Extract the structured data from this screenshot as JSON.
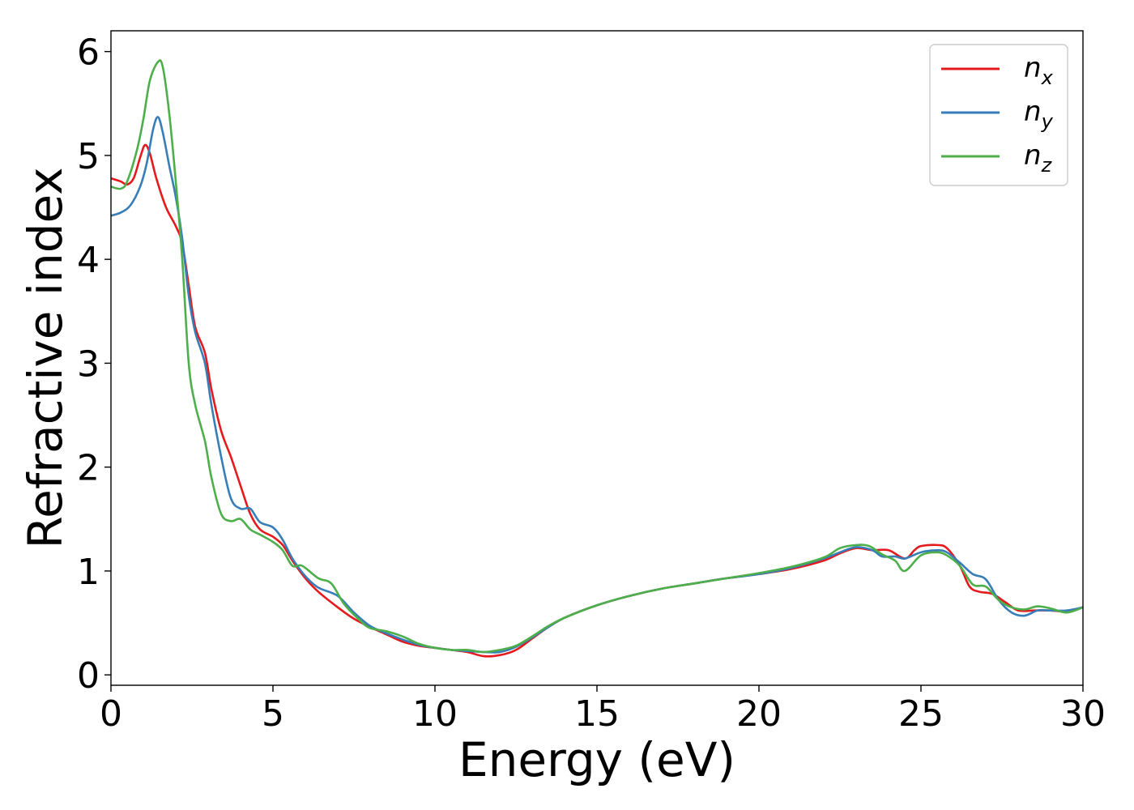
{
  "chart_data": {
    "type": "line",
    "title": "",
    "xlabel": "Energy (eV)",
    "ylabel": "Refractive index",
    "xlim": [
      0,
      30
    ],
    "ylim": [
      -0.1,
      6.2
    ],
    "xticks": [
      0,
      5,
      10,
      15,
      20,
      25,
      30
    ],
    "yticks": [
      0,
      1,
      2,
      3,
      4,
      5,
      6
    ],
    "grid": false,
    "legend_position": "top-right",
    "series": [
      {
        "name": "n",
        "subscript": "x",
        "color": "#e41a1c",
        "points": [
          [
            0,
            4.78
          ],
          [
            0.3,
            4.75
          ],
          [
            0.5,
            4.72
          ],
          [
            0.7,
            4.78
          ],
          [
            0.9,
            4.98
          ],
          [
            1.05,
            5.1
          ],
          [
            1.2,
            5.02
          ],
          [
            1.4,
            4.78
          ],
          [
            1.7,
            4.5
          ],
          [
            2.0,
            4.32
          ],
          [
            2.2,
            4.15
          ],
          [
            2.4,
            3.75
          ],
          [
            2.6,
            3.35
          ],
          [
            2.9,
            3.1
          ],
          [
            3.1,
            2.75
          ],
          [
            3.4,
            2.35
          ],
          [
            3.7,
            2.1
          ],
          [
            4.0,
            1.82
          ],
          [
            4.3,
            1.55
          ],
          [
            4.6,
            1.4
          ],
          [
            5.0,
            1.33
          ],
          [
            5.3,
            1.25
          ],
          [
            5.6,
            1.1
          ],
          [
            6.0,
            0.93
          ],
          [
            6.4,
            0.8
          ],
          [
            7.0,
            0.65
          ],
          [
            7.5,
            0.54
          ],
          [
            8.0,
            0.46
          ],
          [
            8.5,
            0.39
          ],
          [
            9.0,
            0.32
          ],
          [
            9.5,
            0.28
          ],
          [
            10.0,
            0.26
          ],
          [
            10.5,
            0.24
          ],
          [
            11.0,
            0.22
          ],
          [
            11.5,
            0.18
          ],
          [
            12.0,
            0.19
          ],
          [
            12.5,
            0.24
          ],
          [
            13.0,
            0.35
          ],
          [
            13.5,
            0.46
          ],
          [
            14.0,
            0.55
          ],
          [
            15.0,
            0.67
          ],
          [
            16.0,
            0.76
          ],
          [
            17.0,
            0.83
          ],
          [
            18.0,
            0.88
          ],
          [
            19.0,
            0.93
          ],
          [
            20.0,
            0.97
          ],
          [
            21.0,
            1.02
          ],
          [
            22.0,
            1.1
          ],
          [
            22.5,
            1.17
          ],
          [
            23.0,
            1.22
          ],
          [
            23.5,
            1.2
          ],
          [
            24.0,
            1.2
          ],
          [
            24.5,
            1.12
          ],
          [
            24.8,
            1.2
          ],
          [
            25.0,
            1.24
          ],
          [
            25.5,
            1.25
          ],
          [
            25.8,
            1.22
          ],
          [
            26.2,
            1.05
          ],
          [
            26.5,
            0.85
          ],
          [
            26.8,
            0.8
          ],
          [
            27.2,
            0.78
          ],
          [
            27.6,
            0.7
          ],
          [
            28.0,
            0.62
          ],
          [
            28.5,
            0.62
          ],
          [
            29.0,
            0.62
          ],
          [
            29.5,
            0.61
          ],
          [
            30.0,
            0.65
          ]
        ]
      },
      {
        "name": "n",
        "subscript": "y",
        "color": "#377eb8",
        "points": [
          [
            0,
            4.42
          ],
          [
            0.3,
            4.45
          ],
          [
            0.6,
            4.52
          ],
          [
            0.9,
            4.7
          ],
          [
            1.1,
            4.92
          ],
          [
            1.3,
            5.25
          ],
          [
            1.45,
            5.37
          ],
          [
            1.6,
            5.22
          ],
          [
            1.8,
            4.9
          ],
          [
            2.0,
            4.6
          ],
          [
            2.2,
            4.2
          ],
          [
            2.4,
            3.65
          ],
          [
            2.6,
            3.3
          ],
          [
            2.9,
            3.0
          ],
          [
            3.1,
            2.6
          ],
          [
            3.4,
            2.1
          ],
          [
            3.7,
            1.7
          ],
          [
            4.0,
            1.6
          ],
          [
            4.3,
            1.6
          ],
          [
            4.6,
            1.47
          ],
          [
            5.0,
            1.42
          ],
          [
            5.3,
            1.3
          ],
          [
            5.6,
            1.12
          ],
          [
            6.0,
            0.95
          ],
          [
            6.4,
            0.84
          ],
          [
            7.0,
            0.76
          ],
          [
            7.5,
            0.6
          ],
          [
            8.0,
            0.47
          ],
          [
            8.5,
            0.4
          ],
          [
            9.0,
            0.34
          ],
          [
            9.5,
            0.29
          ],
          [
            10.0,
            0.26
          ],
          [
            10.5,
            0.24
          ],
          [
            11.0,
            0.23
          ],
          [
            11.5,
            0.22
          ],
          [
            12.0,
            0.22
          ],
          [
            12.5,
            0.27
          ],
          [
            13.0,
            0.36
          ],
          [
            13.5,
            0.46
          ],
          [
            14.0,
            0.55
          ],
          [
            15.0,
            0.67
          ],
          [
            16.0,
            0.76
          ],
          [
            17.0,
            0.83
          ],
          [
            18.0,
            0.88
          ],
          [
            19.0,
            0.93
          ],
          [
            20.0,
            0.97
          ],
          [
            21.0,
            1.03
          ],
          [
            22.0,
            1.12
          ],
          [
            22.5,
            1.18
          ],
          [
            23.0,
            1.23
          ],
          [
            23.5,
            1.2
          ],
          [
            23.8,
            1.14
          ],
          [
            24.2,
            1.14
          ],
          [
            24.5,
            1.12
          ],
          [
            25.0,
            1.18
          ],
          [
            25.5,
            1.2
          ],
          [
            25.8,
            1.18
          ],
          [
            26.2,
            1.08
          ],
          [
            26.6,
            0.97
          ],
          [
            27.0,
            0.92
          ],
          [
            27.4,
            0.72
          ],
          [
            27.8,
            0.6
          ],
          [
            28.2,
            0.57
          ],
          [
            28.6,
            0.62
          ],
          [
            29.0,
            0.62
          ],
          [
            29.5,
            0.62
          ],
          [
            30.0,
            0.65
          ]
        ]
      },
      {
        "name": "n",
        "subscript": "z",
        "color": "#4daf4a",
        "points": [
          [
            0,
            4.7
          ],
          [
            0.3,
            4.68
          ],
          [
            0.5,
            4.75
          ],
          [
            0.8,
            5.05
          ],
          [
            1.0,
            5.35
          ],
          [
            1.2,
            5.72
          ],
          [
            1.45,
            5.9
          ],
          [
            1.6,
            5.85
          ],
          [
            1.8,
            5.4
          ],
          [
            2.0,
            4.75
          ],
          [
            2.2,
            4.0
          ],
          [
            2.4,
            3.0
          ],
          [
            2.6,
            2.6
          ],
          [
            2.9,
            2.25
          ],
          [
            3.1,
            1.9
          ],
          [
            3.4,
            1.55
          ],
          [
            3.7,
            1.48
          ],
          [
            4.0,
            1.5
          ],
          [
            4.3,
            1.4
          ],
          [
            4.6,
            1.35
          ],
          [
            5.0,
            1.28
          ],
          [
            5.3,
            1.2
          ],
          [
            5.6,
            1.05
          ],
          [
            5.9,
            1.05
          ],
          [
            6.4,
            0.93
          ],
          [
            6.8,
            0.88
          ],
          [
            7.2,
            0.68
          ],
          [
            7.7,
            0.52
          ],
          [
            8.0,
            0.45
          ],
          [
            8.5,
            0.42
          ],
          [
            9.0,
            0.37
          ],
          [
            9.5,
            0.3
          ],
          [
            10.0,
            0.26
          ],
          [
            10.5,
            0.24
          ],
          [
            11.0,
            0.24
          ],
          [
            11.5,
            0.22
          ],
          [
            12.0,
            0.24
          ],
          [
            12.5,
            0.28
          ],
          [
            13.0,
            0.37
          ],
          [
            13.5,
            0.47
          ],
          [
            14.0,
            0.55
          ],
          [
            15.0,
            0.67
          ],
          [
            16.0,
            0.76
          ],
          [
            17.0,
            0.83
          ],
          [
            18.0,
            0.88
          ],
          [
            19.0,
            0.93
          ],
          [
            20.0,
            0.98
          ],
          [
            21.0,
            1.04
          ],
          [
            22.0,
            1.13
          ],
          [
            22.5,
            1.22
          ],
          [
            23.0,
            1.25
          ],
          [
            23.4,
            1.24
          ],
          [
            23.8,
            1.16
          ],
          [
            24.2,
            1.1
          ],
          [
            24.5,
            1.0
          ],
          [
            25.0,
            1.15
          ],
          [
            25.5,
            1.18
          ],
          [
            25.8,
            1.15
          ],
          [
            26.2,
            1.05
          ],
          [
            26.6,
            0.87
          ],
          [
            27.0,
            0.85
          ],
          [
            27.4,
            0.72
          ],
          [
            27.8,
            0.65
          ],
          [
            28.2,
            0.63
          ],
          [
            28.6,
            0.66
          ],
          [
            29.0,
            0.64
          ],
          [
            29.5,
            0.6
          ],
          [
            30.0,
            0.65
          ]
        ]
      }
    ]
  }
}
